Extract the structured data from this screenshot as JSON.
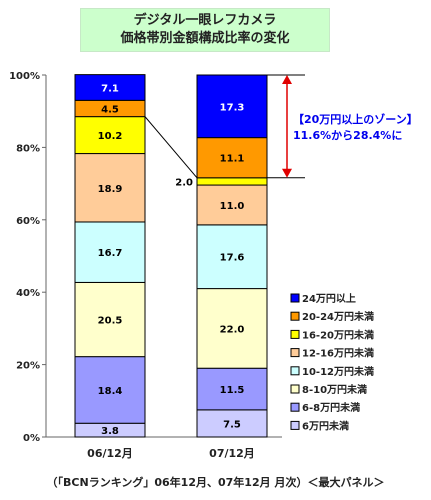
{
  "chart_data": {
    "type": "bar",
    "stacked": true,
    "percent": true,
    "title": "デジタル一眼レフカメラ",
    "subtitle": "価格帯別金額構成比率の変化",
    "categories": [
      "06/12月",
      "07/12月"
    ],
    "y_ticks": [
      "0%",
      "20%",
      "40%",
      "60%",
      "80%",
      "100%"
    ],
    "ylim": [
      0,
      100
    ],
    "grid": false,
    "legend_position": "right",
    "series": [
      {
        "name": "6万円未満",
        "color": "#ccccff",
        "values": [
          3.8,
          7.5
        ]
      },
      {
        "name": "6-8万円未満",
        "color": "#9999ff",
        "values": [
          18.4,
          11.5
        ]
      },
      {
        "name": "8-10万円未満",
        "color": "#ffffcc",
        "values": [
          20.5,
          22.0
        ]
      },
      {
        "name": "10-12万円未満",
        "color": "#ccffff",
        "values": [
          16.7,
          17.6
        ]
      },
      {
        "name": "12-16万円未満",
        "color": "#ffcc99",
        "values": [
          18.9,
          11.0
        ]
      },
      {
        "name": "16-20万円未満",
        "color": "#ffff00",
        "values": [
          10.2,
          2.0
        ]
      },
      {
        "name": "20-24万円未満",
        "color": "#ff9900",
        "values": [
          4.5,
          11.1
        ]
      },
      {
        "name": "24万円以上",
        "color": "#0000ff",
        "values": [
          7.1,
          17.3
        ]
      }
    ],
    "annotation": {
      "line1": "【20万円以上のゾーン】",
      "line2": "11.6%から28.4%に"
    }
  },
  "source_note": "（「BCNランキング」06年12月、07年12月 月次）＜最大パネル＞"
}
